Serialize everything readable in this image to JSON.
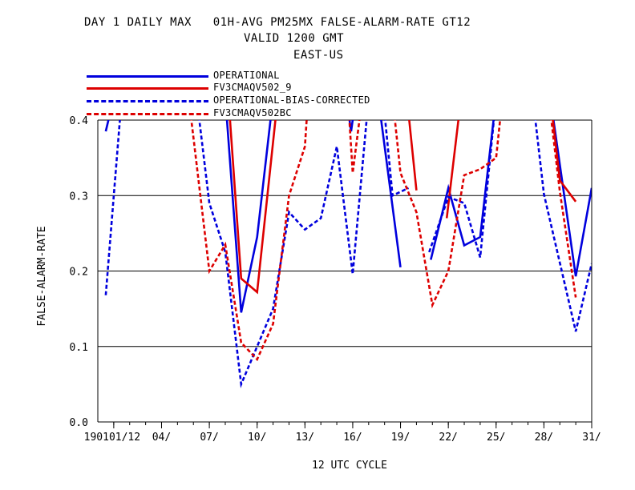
{
  "title": {
    "line1": "DAY 1 DAILY MAX   01H-AVG PM25MX FALSE-ALARM-RATE GT12",
    "line2": "VALID 1200 GMT",
    "line3": "EAST-US"
  },
  "chart_data": {
    "type": "line",
    "xlabel": "12 UTC CYCLE",
    "ylabel": "FALSE-ALARM-RATE",
    "ylim": [
      0.0,
      0.4
    ],
    "xlim": [
      0,
      31
    ],
    "grid": true,
    "legend_position": "top-left",
    "y_ticks": [
      "0.0",
      "0.1",
      "0.2",
      "0.3",
      "0.4"
    ],
    "x_ticks": [
      {
        "day": 1,
        "label": "190101/12"
      },
      {
        "day": 4,
        "label": "04/"
      },
      {
        "day": 7,
        "label": "07/"
      },
      {
        "day": 10,
        "label": "10/"
      },
      {
        "day": 13,
        "label": "13/"
      },
      {
        "day": 16,
        "label": "16/"
      },
      {
        "day": 19,
        "label": "19/"
      },
      {
        "day": 22,
        "label": "22/"
      },
      {
        "day": 25,
        "label": "25/"
      },
      {
        "day": 28,
        "label": "28/"
      },
      {
        "day": 31,
        "label": "31/"
      }
    ],
    "series": [
      {
        "name": "OPERATIONAL",
        "color": "#0000dd",
        "dash": "solid",
        "segments": [
          [
            [
              0.5,
              0.385
            ],
            [
              1,
              0.43
            ]
          ],
          [
            [
              8,
              0.43
            ],
            [
              9,
              0.145
            ],
            [
              10,
              0.245
            ],
            [
              11,
              0.43
            ]
          ],
          [
            [
              15.6,
              0.43
            ],
            [
              15.9,
              0.385
            ],
            [
              16.2,
              0.43
            ]
          ],
          [
            [
              17.6,
              0.43
            ],
            [
              19,
              0.205
            ]
          ],
          [
            [
              20.9,
              0.215
            ],
            [
              22,
              0.31
            ],
            [
              23,
              0.234
            ],
            [
              24,
              0.245
            ],
            [
              25,
              0.43
            ]
          ],
          [
            [
              28.4,
              0.43
            ],
            [
              30,
              0.193
            ],
            [
              31,
              0.31
            ]
          ]
        ]
      },
      {
        "name": "FV3CMAQV502_9",
        "color": "#dd0000",
        "dash": "solid",
        "segments": [
          [
            [
              8.2,
              0.43
            ],
            [
              9,
              0.19
            ],
            [
              10,
              0.172
            ],
            [
              11.3,
              0.43
            ]
          ],
          [
            [
              19.4,
              0.43
            ],
            [
              20,
              0.307
            ]
          ],
          [
            [
              21.9,
              0.27
            ],
            [
              22.8,
              0.43
            ]
          ],
          [
            [
              28.4,
              0.43
            ],
            [
              29,
              0.32
            ],
            [
              30,
              0.292
            ]
          ]
        ]
      },
      {
        "name": "OPERATIONAL-BIAS-CORRECTED",
        "color": "#0000dd",
        "dash": "dashed",
        "segments": [
          [
            [
              0.5,
              0.168
            ],
            [
              1.5,
              0.43
            ]
          ],
          [
            [
              6.2,
              0.43
            ],
            [
              7,
              0.29
            ],
            [
              8,
              0.225
            ],
            [
              9,
              0.05
            ],
            [
              10,
              0.1
            ],
            [
              11,
              0.15
            ],
            [
              12,
              0.278
            ],
            [
              13,
              0.255
            ],
            [
              14,
              0.27
            ],
            [
              15,
              0.365
            ],
            [
              16,
              0.196
            ],
            [
              17,
              0.43
            ]
          ],
          [
            [
              17.9,
              0.43
            ],
            [
              18.5,
              0.3
            ],
            [
              19.5,
              0.31
            ]
          ],
          [
            [
              20.8,
              0.225
            ],
            [
              22,
              0.298
            ],
            [
              23,
              0.29
            ],
            [
              24,
              0.218
            ],
            [
              25,
              0.43
            ]
          ],
          [
            [
              27.3,
              0.43
            ],
            [
              28,
              0.302
            ],
            [
              30,
              0.12
            ],
            [
              31,
              0.21
            ]
          ]
        ]
      },
      {
        "name": "FV3CMAQV502BC",
        "color": "#dd0000",
        "dash": "dashed",
        "segments": [
          [
            [
              5.7,
              0.43
            ],
            [
              7,
              0.2
            ],
            [
              8,
              0.235
            ],
            [
              9,
              0.105
            ],
            [
              10,
              0.083
            ],
            [
              11,
              0.13
            ],
            [
              12,
              0.3
            ],
            [
              13,
              0.365
            ],
            [
              13.2,
              0.43
            ]
          ],
          [
            [
              15.7,
              0.43
            ],
            [
              16,
              0.33
            ],
            [
              16.6,
              0.43
            ]
          ],
          [
            [
              18.5,
              0.43
            ],
            [
              19,
              0.33
            ],
            [
              20,
              0.278
            ],
            [
              21,
              0.155
            ],
            [
              22,
              0.2
            ],
            [
              23,
              0.327
            ],
            [
              24,
              0.335
            ],
            [
              25,
              0.35
            ],
            [
              25.4,
              0.43
            ]
          ],
          [
            [
              28.3,
              0.43
            ],
            [
              29,
              0.305
            ],
            [
              30,
              0.165
            ]
          ]
        ]
      }
    ]
  }
}
